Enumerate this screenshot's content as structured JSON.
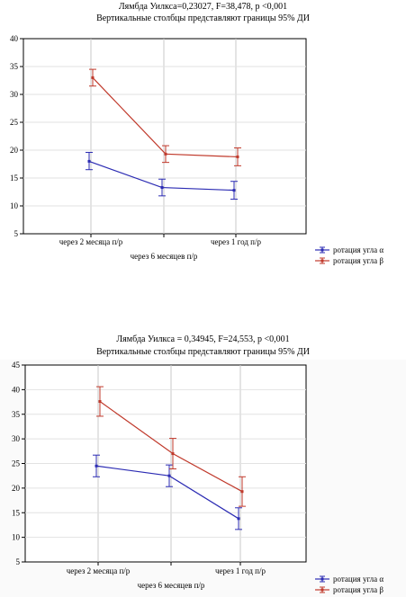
{
  "chart_data": [
    {
      "type": "line",
      "title": "Лямбда Уилкса=0,23027, F=38,478, p <0,001",
      "subtitle": "Вертикальные столбцы представляют границы 95% ДИ",
      "categories": [
        "через 2 месяца п/р",
        "через 6 месяцев п/р",
        "через 1 год п/р"
      ],
      "ylim": [
        5,
        40
      ],
      "yticks": [
        "5",
        "10",
        "15",
        "20",
        "25",
        "30",
        "35",
        "40"
      ],
      "grid": true,
      "legend_position": "bottom-right",
      "series": [
        {
          "name": "ротация угла α",
          "color": "#2b2bb3",
          "values": [
            18.0,
            13.3,
            12.8
          ],
          "ci_low": [
            16.5,
            11.8,
            11.2
          ],
          "ci_high": [
            19.6,
            14.8,
            14.4
          ]
        },
        {
          "name": "ротация угла β",
          "color": "#c0392b",
          "values": [
            33.0,
            19.3,
            18.8
          ],
          "ci_low": [
            31.5,
            17.8,
            17.2
          ],
          "ci_high": [
            34.5,
            20.8,
            20.4
          ]
        }
      ]
    },
    {
      "type": "line",
      "title": "Лямбда Уилкса = 0,34945, F=24,553, p <0,001",
      "subtitle": "Вертикальные столбцы представляют границы  95% ДИ",
      "categories": [
        "через 2 месяца п/р",
        "через 6 месяцев п/р",
        "через 1 год п/р"
      ],
      "ylim": [
        5,
        45
      ],
      "yticks": [
        "5",
        "10",
        "15",
        "20",
        "25",
        "30",
        "35",
        "40",
        "45"
      ],
      "grid": true,
      "legend_position": "bottom-right",
      "series": [
        {
          "name": "ротация угла α",
          "color": "#2b2bb3",
          "values": [
            24.5,
            22.5,
            13.8
          ],
          "ci_low": [
            22.3,
            20.3,
            11.6
          ],
          "ci_high": [
            26.7,
            24.7,
            16.0
          ]
        },
        {
          "name": "ротация угла β",
          "color": "#c0392b",
          "values": [
            37.6,
            27.0,
            19.3
          ],
          "ci_low": [
            34.6,
            23.9,
            16.3
          ],
          "ci_high": [
            40.6,
            30.1,
            22.3
          ]
        }
      ]
    }
  ]
}
